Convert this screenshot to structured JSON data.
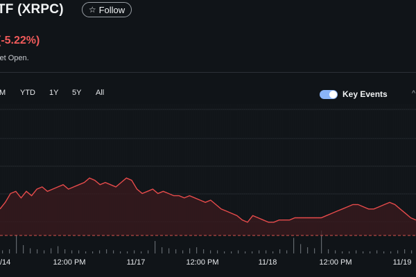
{
  "header": {
    "title_fragment": "TF (XRPC)",
    "follow_label": "Follow",
    "change_fragment": "(-5.22%)",
    "market_status_fragment": "ket Open."
  },
  "range_tabs": [
    {
      "label": "M"
    },
    {
      "label": "YTD"
    },
    {
      "label": "1Y"
    },
    {
      "label": "5Y"
    },
    {
      "label": "All"
    }
  ],
  "key_events": {
    "label": "Key Events",
    "enabled": true
  },
  "icons": {
    "follow": "star-icon",
    "toggle": "toggle-switch-icon",
    "edge_arrow": "chevron-up-icon"
  },
  "colors": {
    "background": "#101418",
    "price_line": "#e84b4b",
    "price_fill": "#3a1a1d",
    "volume": "#9aa0a6",
    "accent_toggle": "#8ab4f8",
    "negative": "#f15b5b"
  },
  "chart_data": {
    "type": "line",
    "x_tick_labels": [
      "/14",
      "12:00 PM",
      "11/17",
      "12:00 PM",
      "11/18",
      "12:00 PM",
      "11/19"
    ],
    "grid": true,
    "reference_line": "dashed previous close",
    "series": [
      {
        "values": [
          52,
          55,
          59,
          60,
          57,
          60,
          58,
          61,
          62,
          60,
          61,
          62,
          63,
          61,
          62,
          63,
          64,
          66,
          65,
          63,
          64,
          63,
          62,
          64,
          66,
          65,
          61,
          59,
          60,
          61,
          59,
          60,
          59,
          58,
          58,
          57,
          58,
          57,
          56,
          55,
          56,
          54,
          52,
          51,
          50,
          49,
          47,
          46,
          49,
          48,
          47,
          46,
          46,
          47,
          47,
          47,
          48,
          48,
          48,
          48,
          48,
          48,
          49,
          50,
          51,
          52,
          53,
          54,
          54,
          53,
          52,
          52,
          53,
          54,
          55,
          54,
          52,
          50,
          48,
          47
        ]
      }
    ],
    "volume": [
      3,
      4,
      18,
      8,
      5,
      4,
      3,
      5,
      7,
      4,
      3,
      3,
      2,
      2,
      3,
      4,
      3,
      2,
      2,
      3,
      2,
      3,
      12,
      6,
      5,
      4,
      3,
      5,
      6,
      4,
      3,
      3,
      2,
      2,
      3,
      2,
      2,
      3,
      3,
      2,
      4,
      3,
      15,
      9,
      6,
      5,
      22,
      4,
      3,
      2,
      2,
      3,
      2,
      2,
      3,
      2,
      2,
      3,
      4,
      3
    ]
  }
}
